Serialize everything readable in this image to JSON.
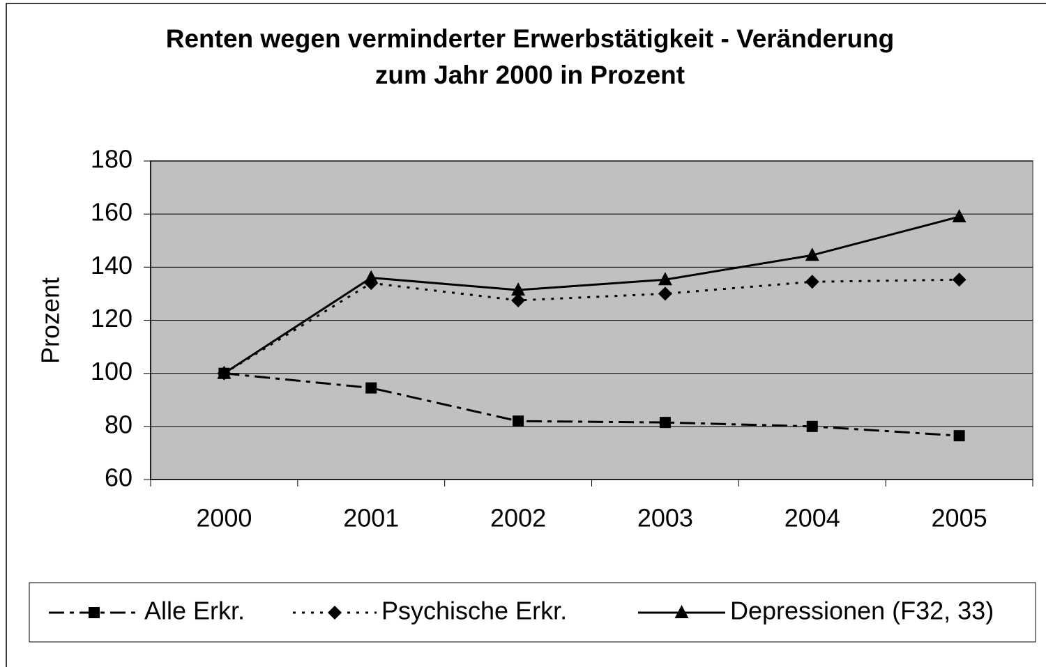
{
  "chart_data": {
    "type": "line",
    "title": [
      "Renten wegen verminderter Erwerbstätigkeit - Veränderung",
      "zum Jahr 2000 in Prozent"
    ],
    "y_label": "Prozent",
    "categories": [
      "2000",
      "2001",
      "2002",
      "2003",
      "2004",
      "2005"
    ],
    "series": [
      {
        "name": "Alle Erkr.",
        "color": "#000000",
        "dash": "dash-dot",
        "marker": "square",
        "values": [
          100,
          94.5,
          82,
          81.5,
          80,
          76.5
        ]
      },
      {
        "name": "Psychische Erkr.",
        "color": "#000000",
        "dash": "dot",
        "marker": "diamond",
        "values": [
          100,
          134,
          127.5,
          130,
          134.5,
          135.3
        ]
      },
      {
        "name": "Depressionen (F32, 33)",
        "color": "#000000",
        "dash": "solid",
        "marker": "triangle",
        "values": [
          100,
          136,
          131.4,
          135.3,
          144.5,
          159
        ]
      }
    ],
    "ylim": [
      60,
      180
    ],
    "yticks": [
      60,
      80,
      100,
      120,
      140,
      160,
      180
    ],
    "grid": true,
    "plot_background": "#c0c0c0",
    "legend": "bottom"
  }
}
